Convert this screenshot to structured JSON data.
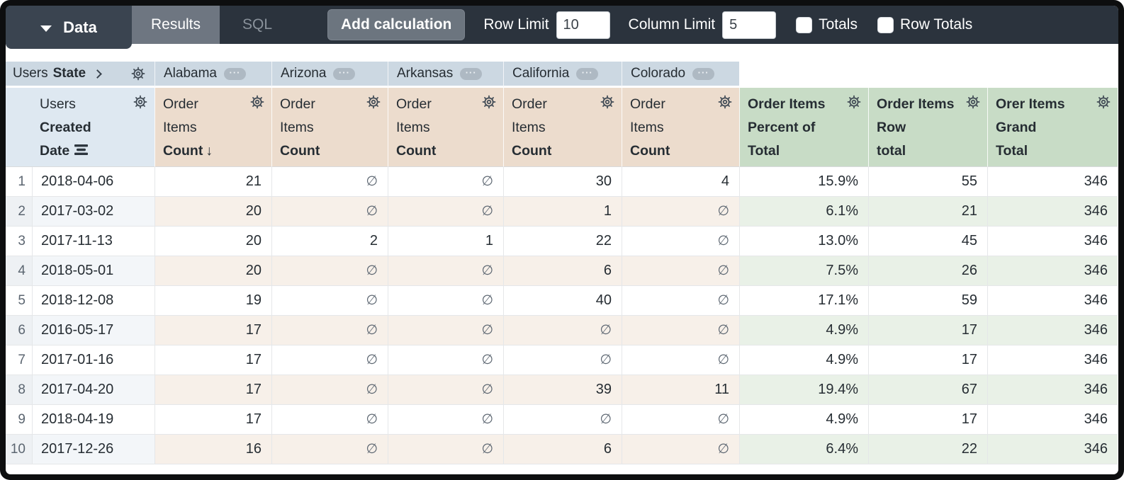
{
  "toolbar": {
    "data_tab": "Data",
    "tabs": {
      "results": "Results",
      "sql": "SQL"
    },
    "add_calculation": "Add calculation",
    "row_limit": {
      "label": "Row Limit",
      "value": "10"
    },
    "column_limit": {
      "label": "Column Limit",
      "value": "5"
    },
    "totals": {
      "label": "Totals",
      "checked": false
    },
    "row_totals": {
      "label": "Row Totals",
      "checked": false
    }
  },
  "colors": {
    "toolbar_bg": "#2b333d",
    "pivot_header_bg": "#ccd8e2",
    "dimension_header_bg": "#dee8f1",
    "measure_header_bg": "#ecdccd",
    "calculation_header_bg": "#c8dcc6",
    "even_row_measure_bg": "#f7f0e9",
    "even_row_calc_bg": "#e9f1e7"
  },
  "pivot": {
    "header": {
      "view": "Users",
      "field": "State"
    },
    "states": [
      "Alabama",
      "Arizona",
      "Arkansas",
      "California",
      "Colorado"
    ]
  },
  "columns": {
    "dimension": {
      "view": "Users",
      "field_lines": [
        "Created",
        "Date"
      ]
    },
    "measure": {
      "view_lines": [
        "Order",
        "Items"
      ],
      "field": "Count",
      "sort_arrow": "↓",
      "sorted_index": 0
    },
    "calculations": [
      {
        "lines": [
          "Order Items",
          "Percent of",
          "Total"
        ]
      },
      {
        "lines": [
          "Order Items",
          "Row",
          "total"
        ]
      },
      {
        "lines": [
          "Orer Items",
          "Grand",
          "Total"
        ]
      }
    ]
  },
  "table": {
    "null_symbol": "∅",
    "rows": [
      {
        "num": "1",
        "date": "2018-04-06",
        "values": [
          "21",
          "∅",
          "∅",
          "30",
          "4"
        ],
        "percent_of_total": "15.9%",
        "row_total": "55",
        "grand_total": "346"
      },
      {
        "num": "2",
        "date": "2017-03-02",
        "values": [
          "20",
          "∅",
          "∅",
          "1",
          "∅"
        ],
        "percent_of_total": "6.1%",
        "row_total": "21",
        "grand_total": "346"
      },
      {
        "num": "3",
        "date": "2017-11-13",
        "values": [
          "20",
          "2",
          "1",
          "22",
          "∅"
        ],
        "percent_of_total": "13.0%",
        "row_total": "45",
        "grand_total": "346"
      },
      {
        "num": "4",
        "date": "2018-05-01",
        "values": [
          "20",
          "∅",
          "∅",
          "6",
          "∅"
        ],
        "percent_of_total": "7.5%",
        "row_total": "26",
        "grand_total": "346"
      },
      {
        "num": "5",
        "date": "2018-12-08",
        "values": [
          "19",
          "∅",
          "∅",
          "40",
          "∅"
        ],
        "percent_of_total": "17.1%",
        "row_total": "59",
        "grand_total": "346"
      },
      {
        "num": "6",
        "date": "2016-05-17",
        "values": [
          "17",
          "∅",
          "∅",
          "∅",
          "∅"
        ],
        "percent_of_total": "4.9%",
        "row_total": "17",
        "grand_total": "346"
      },
      {
        "num": "7",
        "date": "2017-01-16",
        "values": [
          "17",
          "∅",
          "∅",
          "∅",
          "∅"
        ],
        "percent_of_total": "4.9%",
        "row_total": "17",
        "grand_total": "346"
      },
      {
        "num": "8",
        "date": "2017-04-20",
        "values": [
          "17",
          "∅",
          "∅",
          "39",
          "11"
        ],
        "percent_of_total": "19.4%",
        "row_total": "67",
        "grand_total": "346"
      },
      {
        "num": "9",
        "date": "2018-04-19",
        "values": [
          "17",
          "∅",
          "∅",
          "∅",
          "∅"
        ],
        "percent_of_total": "4.9%",
        "row_total": "17",
        "grand_total": "346"
      },
      {
        "num": "10",
        "date": "2017-12-26",
        "values": [
          "16",
          "∅",
          "∅",
          "6",
          "∅"
        ],
        "percent_of_total": "6.4%",
        "row_total": "22",
        "grand_total": "346"
      }
    ]
  }
}
